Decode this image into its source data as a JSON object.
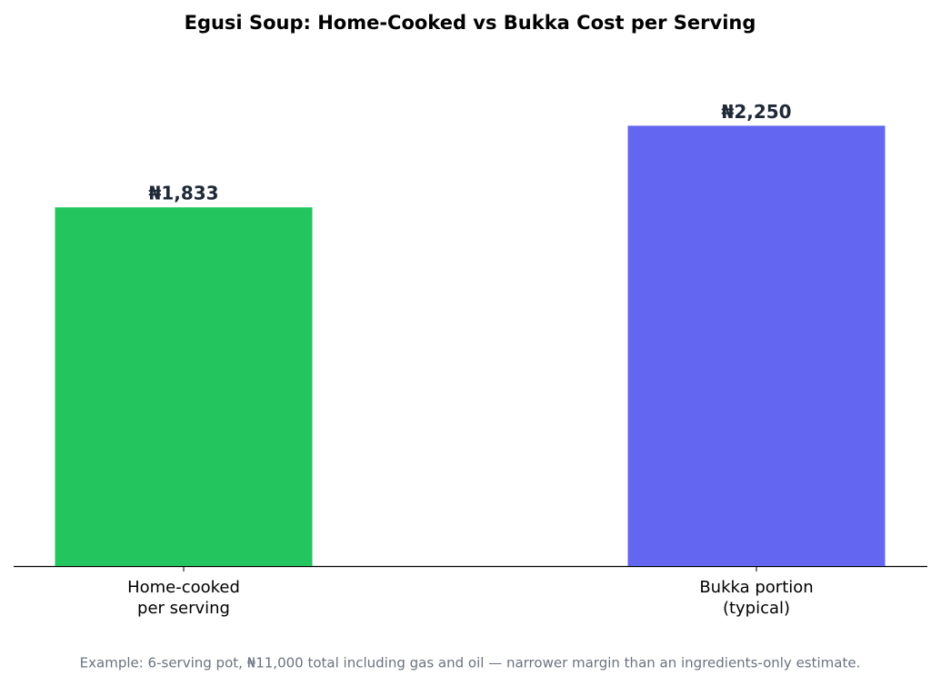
{
  "chart_data": {
    "type": "bar",
    "title": "Egusi Soup: Home-Cooked vs Bukka Cost per Serving",
    "categories": [
      "Home-cooked\nper serving",
      "Bukka portion\n(typical)"
    ],
    "values": [
      1833,
      2250
    ],
    "value_labels": [
      "₦1,833",
      "₦2,250"
    ],
    "colors": [
      "#22c55e",
      "#6366f1"
    ],
    "ylim": [
      0,
      2600
    ],
    "footnote": "Example: 6-serving pot, ₦11,000 total including gas and oil — narrower margin than an ingredients-only estimate."
  }
}
